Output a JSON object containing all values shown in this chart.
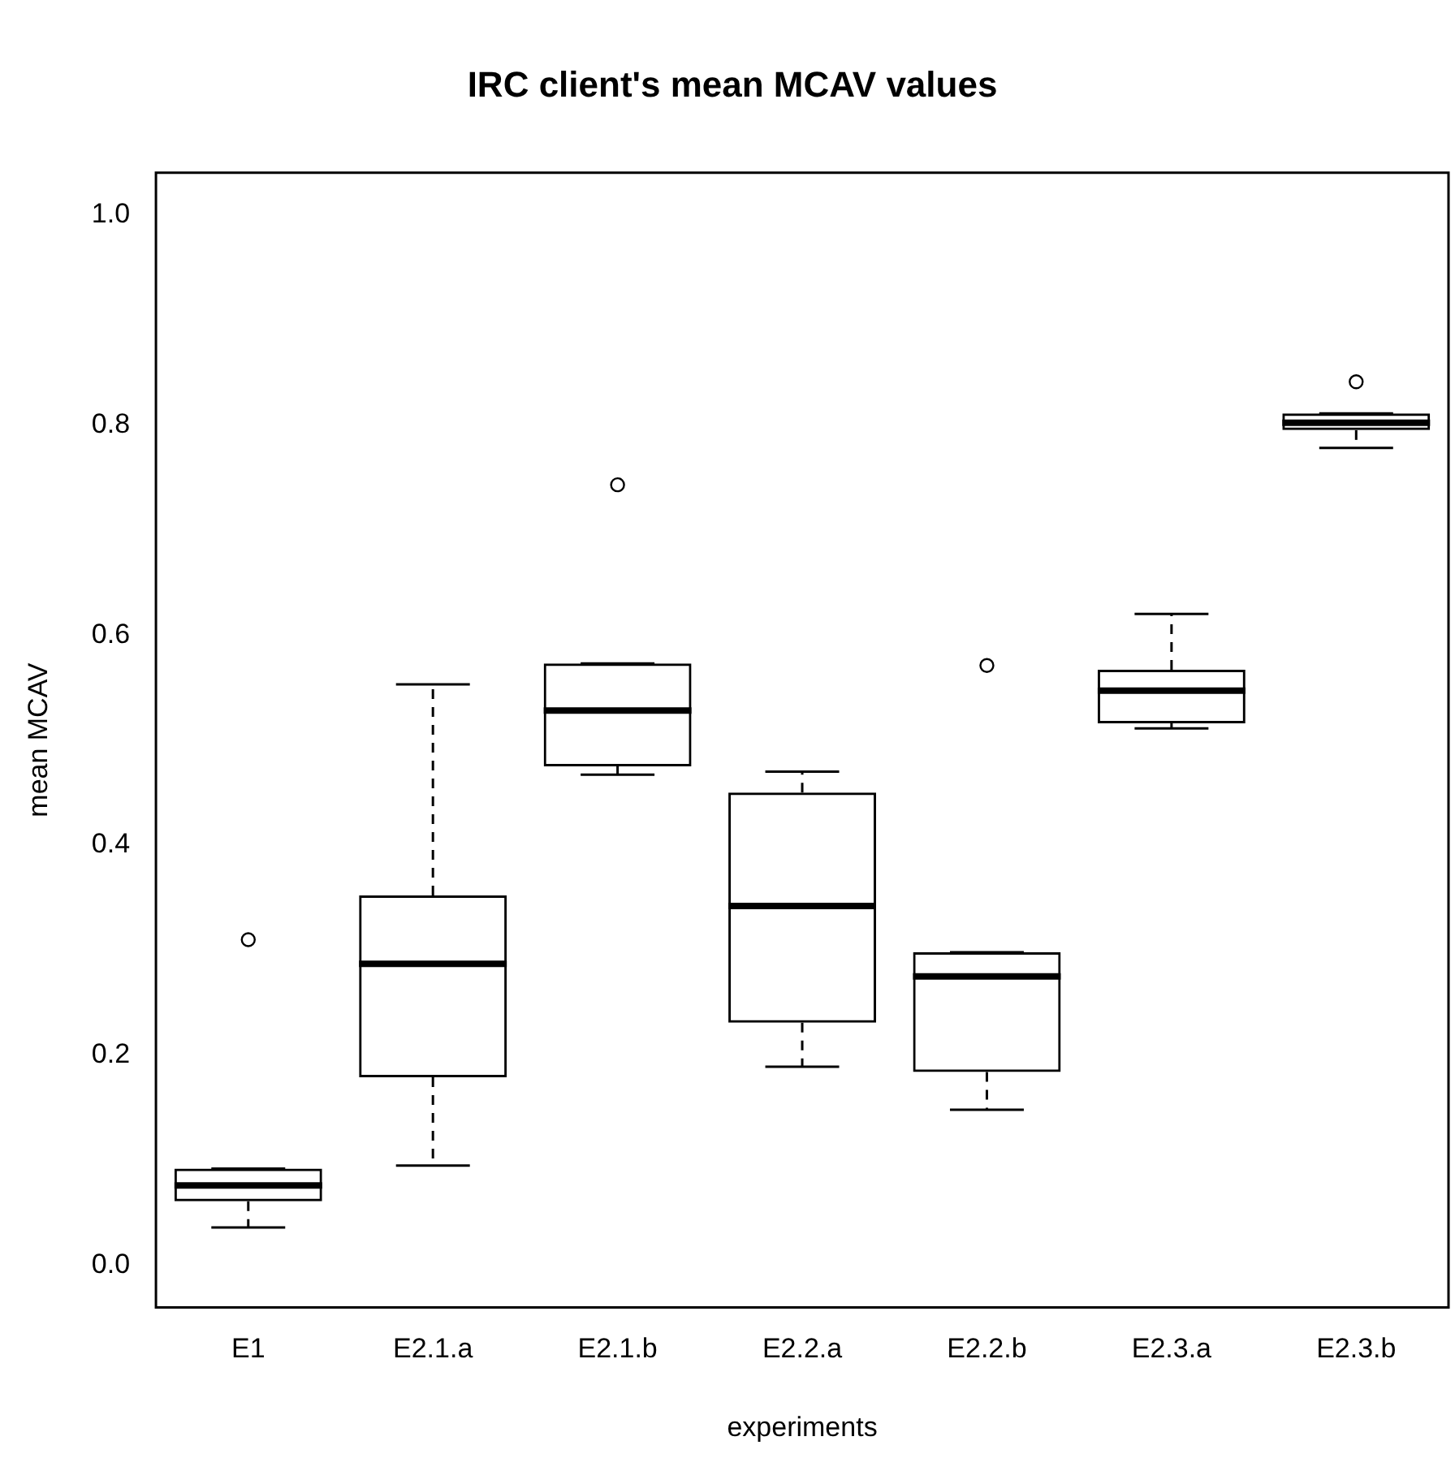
{
  "chart_data": {
    "type": "box",
    "title": "IRC client's mean MCAV values",
    "xlabel": "experiments",
    "ylabel": "mean MCAV",
    "categories": [
      "E1",
      "E2.1.a",
      "E2.1.b",
      "E2.2.a",
      "E2.2.b",
      "E2.3.a",
      "E2.3.b"
    ],
    "color": "#000000",
    "boxes": [
      {
        "low": 0.036,
        "q1": 0.061,
        "median": 0.076,
        "q3": 0.092,
        "high": 0.092,
        "outliers": [
          0.31
        ]
      },
      {
        "low": 0.095,
        "q1": 0.179,
        "median": 0.287,
        "q3": 0.352,
        "high": 0.553
      },
      {
        "low": 0.467,
        "q1": 0.475,
        "median": 0.528,
        "q3": 0.573,
        "high": 0.573,
        "outliers": [
          0.743
        ]
      },
      {
        "low": 0.189,
        "q1": 0.231,
        "median": 0.342,
        "q3": 0.45,
        "high": 0.47
      },
      {
        "low": 0.148,
        "q1": 0.184,
        "median": 0.275,
        "q3": 0.298,
        "high": 0.298,
        "outliers": [
          0.571
        ]
      },
      {
        "low": 0.511,
        "q1": 0.516,
        "median": 0.547,
        "q3": 0.567,
        "high": 0.62
      },
      {
        "low": 0.778,
        "q1": 0.795,
        "median": 0.802,
        "q3": 0.811,
        "high": 0.811,
        "outliers": [
          0.841
        ]
      }
    ],
    "ylim": [
      -0.04,
      1.04
    ],
    "yticks": [
      {
        "value": 0,
        "label": "0.0"
      },
      {
        "value": 0.2,
        "label": "0.2"
      },
      {
        "value": 0.4,
        "label": "0.4"
      },
      {
        "value": 0.6,
        "label": "0.6"
      },
      {
        "value": 0.8,
        "label": "0.8"
      },
      {
        "value": 1,
        "label": "1.0"
      }
    ],
    "grid": false,
    "legend": false
  }
}
